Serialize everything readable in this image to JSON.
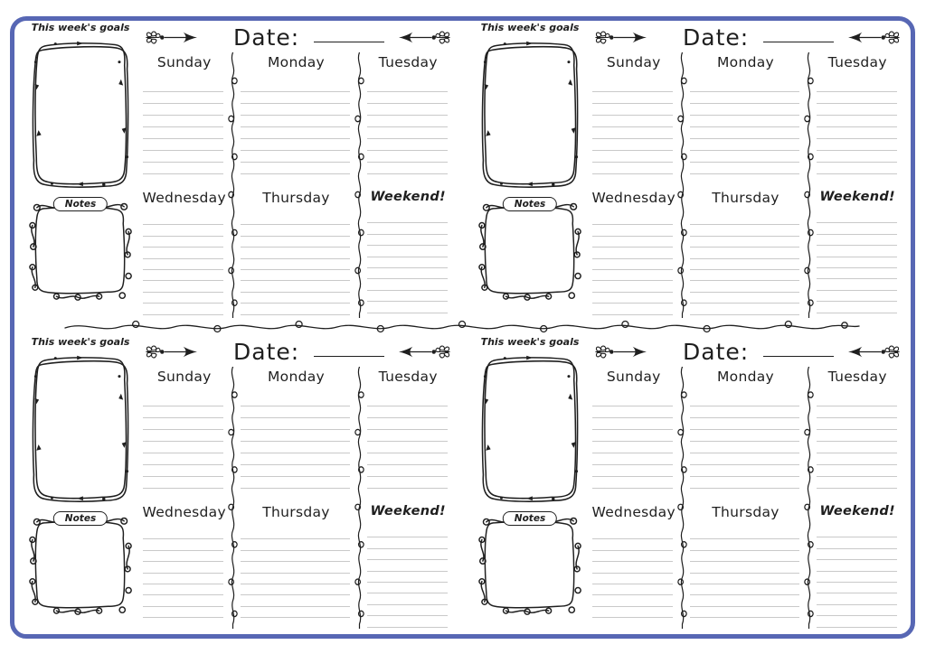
{
  "page": {
    "background": "#ffffff",
    "border_color": "#5767b4",
    "ink_color": "#1f1f1f",
    "rule_color": "#c9c9c9"
  },
  "planner": {
    "quadrants": 4,
    "goals_label": "This week's goals",
    "notes_label": "Notes",
    "date_label": "Date:",
    "days_row1": [
      "Sunday",
      "Monday",
      "Tuesday"
    ],
    "days_row2": [
      "Wednesday",
      "Thursday",
      "Weekend!"
    ]
  },
  "icons": {
    "arrow_right": "arrow-right-icon (hand-drawn arrow with feather fletching, dot and solid head)",
    "arrow_left": "arrow-left-icon (mirrored hand-drawn arrow)",
    "goals_frame": "goals-frame-icon (doodle rounded frame with small tick arrows)",
    "notes_frame": "notes-frame-icon (doodle frame edged with loops)",
    "h_squiggle": "squiggle-divider-icon (horizontal loopy string)",
    "v_squiggle": "column-divider-squiggle-icon (vertical loopy line)"
  }
}
